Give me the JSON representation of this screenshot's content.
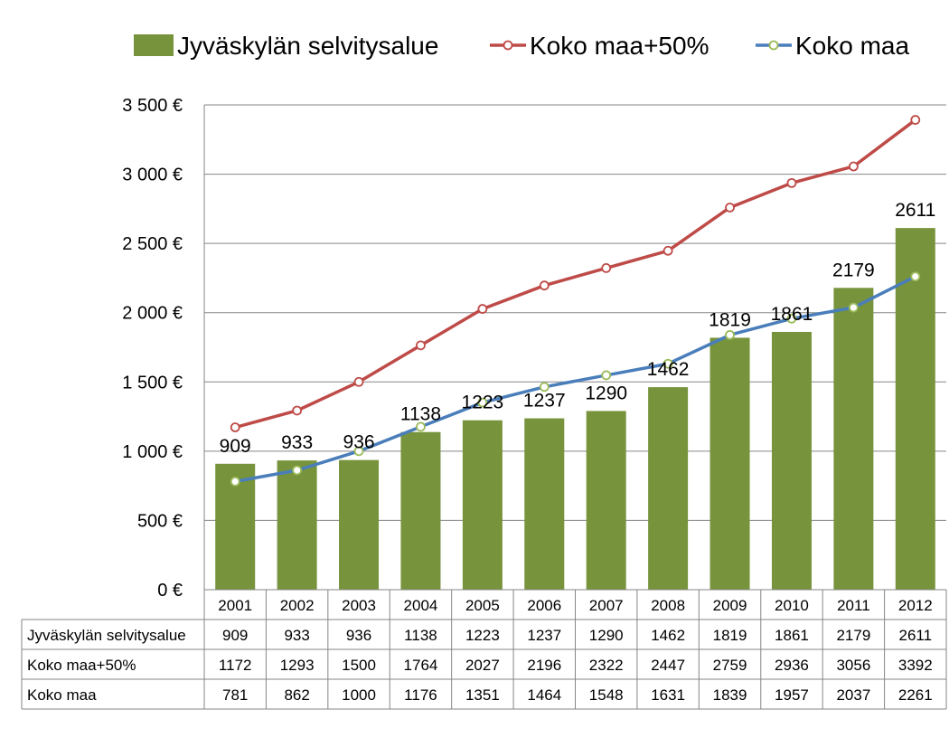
{
  "chart_data": {
    "type": "bar",
    "categories": [
      "2001",
      "2002",
      "2003",
      "2004",
      "2005",
      "2006",
      "2007",
      "2008",
      "2009",
      "2010",
      "2011",
      "2012"
    ],
    "ylim": [
      0,
      3500
    ],
    "yticks": [
      {
        "value": 0,
        "label": "0 €"
      },
      {
        "value": 500,
        "label": "500 €"
      },
      {
        "value": 1000,
        "label": "1 000 €"
      },
      {
        "value": 1500,
        "label": "1 500 €"
      },
      {
        "value": 2000,
        "label": "2 000 €"
      },
      {
        "value": 2500,
        "label": "2 500 €"
      },
      {
        "value": 3000,
        "label": "3 000 €"
      },
      {
        "value": 3500,
        "label": "3 500 €"
      }
    ],
    "grid": true,
    "legend_position": "top",
    "data_table": true,
    "series": [
      {
        "name": "Jyväskylän selvitysalue",
        "type": "bar",
        "color": "#77933c",
        "values": [
          909,
          933,
          936,
          1138,
          1223,
          1237,
          1290,
          1462,
          1819,
          1861,
          2179,
          2611
        ]
      },
      {
        "name": "Koko maa+50%",
        "type": "line",
        "color": "#be4b48",
        "marker_fill": "#ffffff",
        "values": [
          1172,
          1293,
          1500,
          1764,
          2027,
          2196,
          2322,
          2447,
          2759,
          2936,
          3056,
          3392
        ]
      },
      {
        "name": "Koko maa",
        "type": "line",
        "color": "#4a7ebb",
        "marker_fill": "#ffffff",
        "marker_stroke": "#9bbb59",
        "values": [
          781,
          862,
          1000,
          1176,
          1351,
          1464,
          1548,
          1631,
          1839,
          1957,
          2037,
          2261
        ]
      }
    ]
  }
}
